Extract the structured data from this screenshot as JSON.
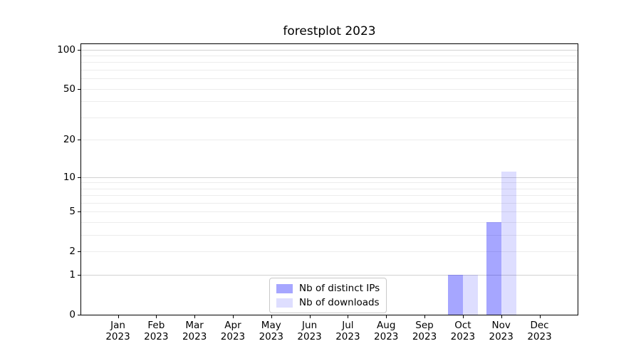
{
  "chart_data": {
    "type": "bar",
    "title": "forestplot 2023",
    "x": {
      "months": [
        "Jan",
        "Feb",
        "Mar",
        "Apr",
        "May",
        "Jun",
        "Jul",
        "Aug",
        "Sep",
        "Oct",
        "Nov",
        "Dec"
      ],
      "year": "2023"
    },
    "series": [
      {
        "name": "Nb of distinct IPs",
        "color": "rgba(0,0,255,0.35)",
        "values": [
          0,
          0,
          0,
          0,
          0,
          0,
          0,
          0,
          0,
          1,
          4,
          0
        ]
      },
      {
        "name": "Nb of downloads",
        "color": "rgba(0,0,255,0.13)",
        "values": [
          0,
          0,
          0,
          0,
          0,
          0,
          0,
          0,
          0,
          1,
          11,
          0
        ]
      }
    ],
    "yscale": "log1p",
    "ylim": [
      0,
      110
    ],
    "y_ticks": [
      0,
      1,
      2,
      5,
      10,
      20,
      50,
      100
    ],
    "gridlines": {
      "major": [
        1,
        10,
        100
      ],
      "minor": [
        2,
        3,
        4,
        5,
        6,
        7,
        8,
        9,
        20,
        30,
        40,
        50,
        60,
        70,
        80,
        90
      ]
    },
    "legend": {
      "position": "lower center",
      "entries": [
        "Nb of distinct IPs",
        "Nb of downloads"
      ]
    },
    "colors": {
      "bar_distinct_ips_rendered": "#a8a8f8",
      "bar_downloads_rendered": "#dedefa",
      "grid_major": "#d2d2d2",
      "grid_minor": "#ececec",
      "axis": "#000000",
      "legend_border": "#c9c9c9"
    }
  }
}
